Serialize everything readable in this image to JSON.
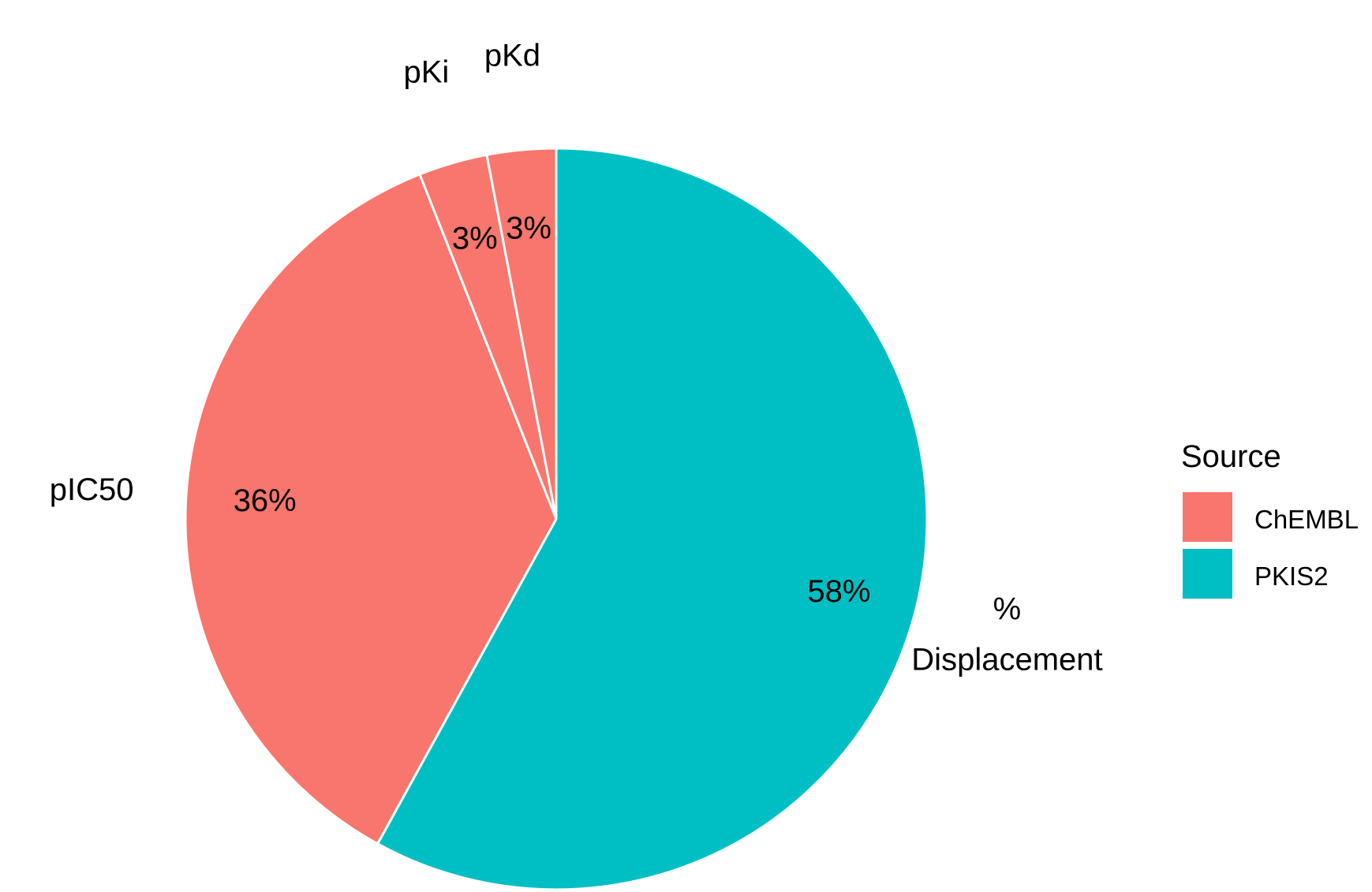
{
  "chart_data": {
    "type": "pie",
    "start": "12 o'clock",
    "direction": "clockwise",
    "slices": [
      {
        "category": "% Displacement",
        "label_lines": [
          "%",
          "Displacement"
        ],
        "percent_label": "58%",
        "value": 58,
        "source": "PKIS2"
      },
      {
        "category": "pIC50",
        "label_lines": [
          "pIC50"
        ],
        "percent_label": "36%",
        "value": 36,
        "source": "ChEMBL"
      },
      {
        "category": "pKi",
        "label_lines": [
          "pKi"
        ],
        "percent_label": "3%",
        "value": 3,
        "source": "ChEMBL"
      },
      {
        "category": "pKd",
        "label_lines": [
          "pKd"
        ],
        "percent_label": "3%",
        "value": 3,
        "source": "ChEMBL"
      }
    ],
    "legend": {
      "title": "Source",
      "placement": "right",
      "items": [
        {
          "name": "ChEMBL",
          "color": "#F8766D"
        },
        {
          "name": "PKIS2",
          "color": "#00BFC4"
        }
      ]
    },
    "slice_border_color": "#FFFFFF",
    "background": "#FFFFFF"
  }
}
